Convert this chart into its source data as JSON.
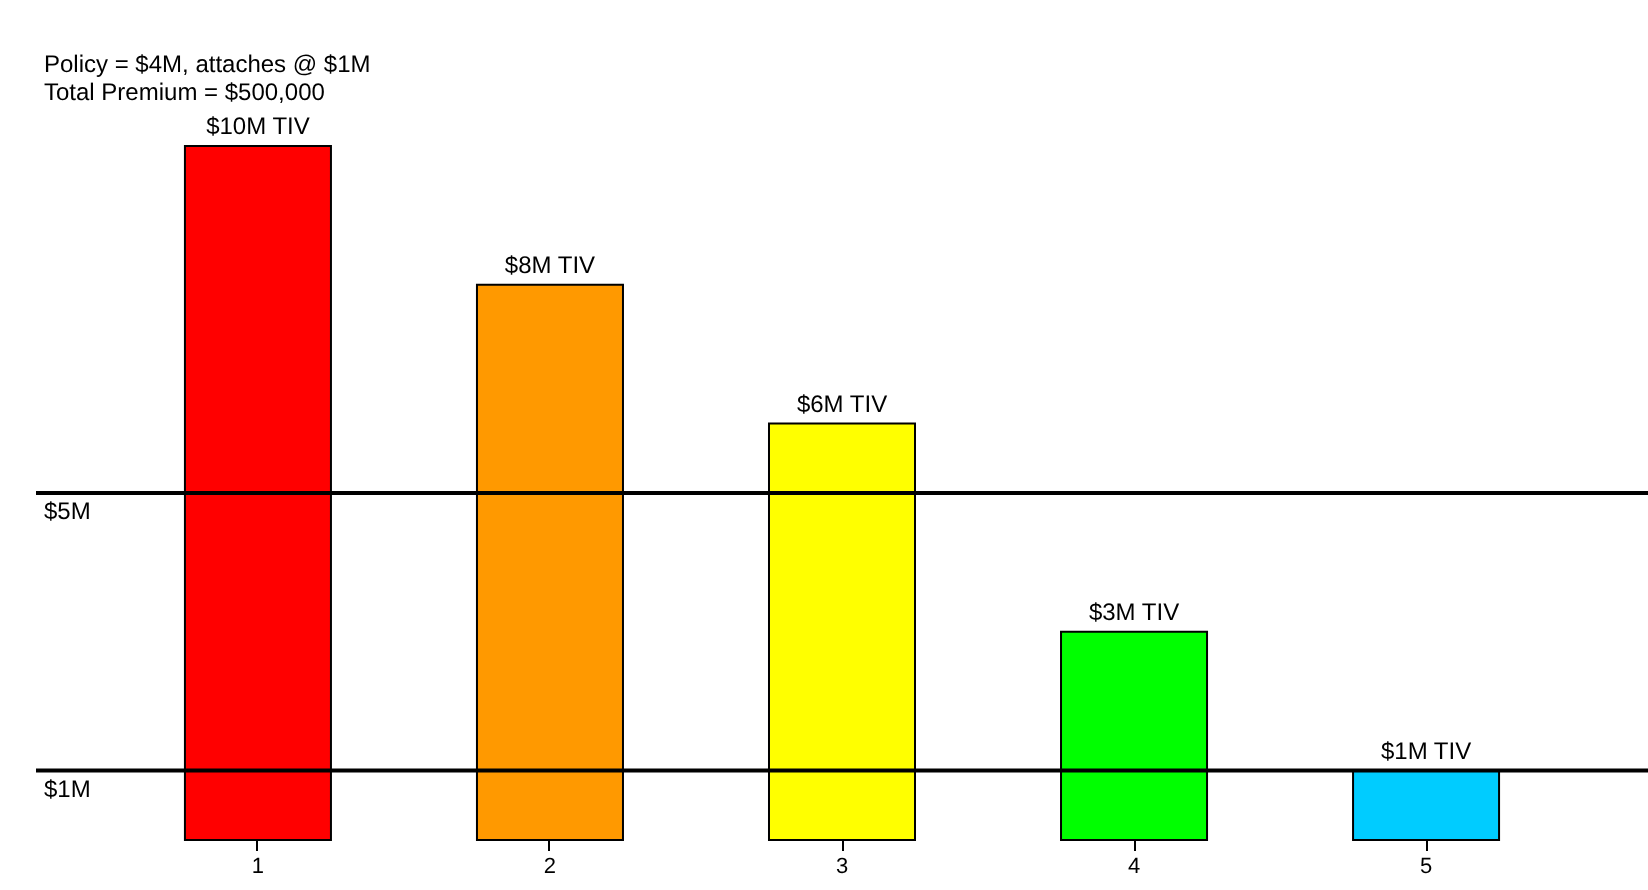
{
  "chart_data": {
    "type": "bar",
    "title": "Policy = $4M, attaches @ $1M",
    "subtitle": "Total Premium = $500,000",
    "categories": [
      "1",
      "2",
      "3",
      "4",
      "5"
    ],
    "values": [
      10,
      8,
      6,
      3,
      1
    ],
    "colors": [
      "#ff0000",
      "#ff9900",
      "#ffff00",
      "#00ff00",
      "#00ccff"
    ],
    "value_labels": [
      "$10M TIV",
      "$8M TIV",
      "$6M TIV",
      "$3M TIV",
      "$1M TIV"
    ],
    "ylim": [
      0,
      10
    ],
    "tick_labels": "x",
    "ref_lines": [
      {
        "axis": "y",
        "value": 5,
        "label": "$5M",
        "color": "#000000"
      },
      {
        "axis": "y",
        "value": 1,
        "label": "$1M",
        "color": "#000000"
      }
    ]
  }
}
